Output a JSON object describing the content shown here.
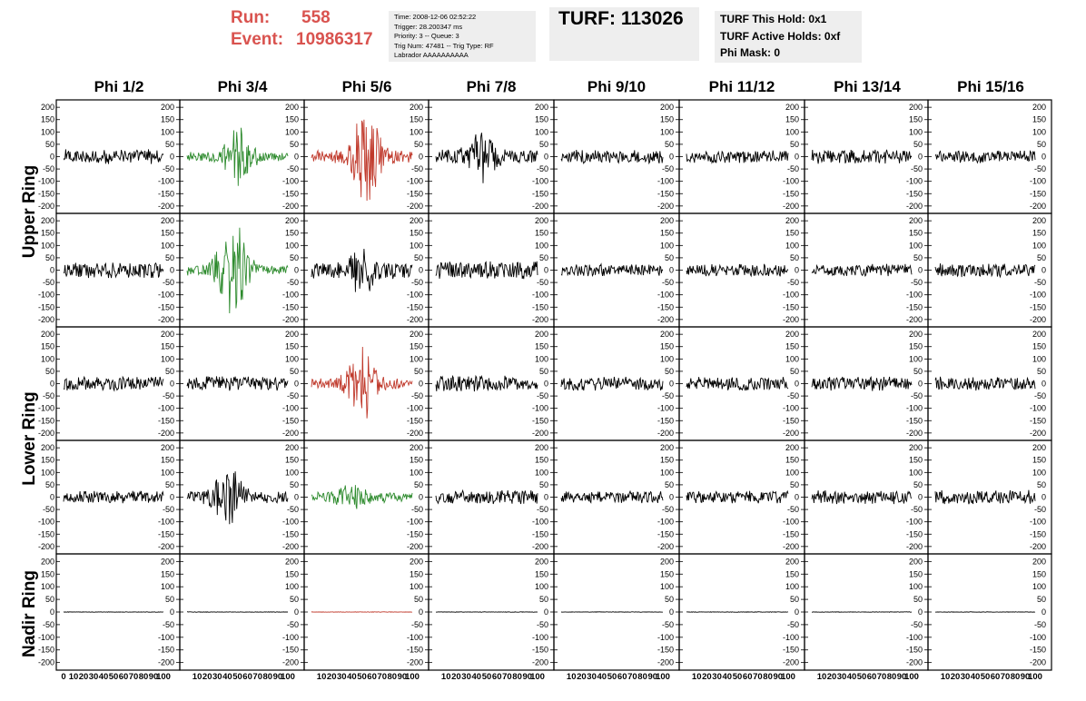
{
  "header": {
    "run_label": "Run:",
    "run_value": "558",
    "event_label": "Event:",
    "event_value": "10986317",
    "info_lines": [
      "Time: 2008-12-06 02:52:22",
      "Trigger: 28.200347 ms",
      "Priority: 3 -- Queue: 3",
      "Trig Num: 47481 -- Trig Type: RF",
      "Labrador AAAAAAAAAA"
    ],
    "turf_title": "TURF: 113026",
    "turf_lines": [
      "TURF This Hold: 0x1",
      "TURF Active Holds: 0xf",
      "Phi Mask: 0"
    ]
  },
  "columns": [
    "Phi 1/2",
    "Phi 3/4",
    "Phi 5/6",
    "Phi 7/8",
    "Phi 9/10",
    "Phi 11/12",
    "Phi 13/14",
    "Phi 15/16"
  ],
  "rings": [
    "Upper Ring",
    "Lower Ring",
    "Nadir Ring"
  ],
  "colors": {
    "triggered_red": "#c0392b",
    "triggered_green": "#2e8b2e",
    "trace": "#000000",
    "header_red": "#d9534f",
    "panel_bg": "#eeeeee"
  },
  "chart_data": {
    "type": "line",
    "description_units": "voltage (mV) vs time (ns)",
    "xlim": [
      0,
      100
    ],
    "ylim": [
      -230,
      230
    ],
    "y_ticks": [
      -200,
      -150,
      -100,
      -50,
      0,
      50,
      100,
      150,
      200
    ],
    "x_tick_labels": [
      "0",
      "10",
      "20",
      "30",
      "40",
      "50",
      "60",
      "70",
      "80",
      "90",
      "100"
    ],
    "rows": [
      {
        "name": "Upper Ring",
        "panels": [
          {
            "color": "black",
            "amplitude": 30,
            "burst_center": null,
            "burst_amplitude": 0
          },
          {
            "color": "green",
            "amplitude": 20,
            "burst_center": 50,
            "burst_amplitude": 110
          },
          {
            "color": "red",
            "amplitude": 25,
            "burst_center": 55,
            "burst_amplitude": 190
          },
          {
            "color": "black",
            "amplitude": 30,
            "burst_center": 45,
            "burst_amplitude": 80
          },
          {
            "color": "black",
            "amplitude": 28,
            "burst_center": null,
            "burst_amplitude": 0
          },
          {
            "color": "black",
            "amplitude": 26,
            "burst_center": null,
            "burst_amplitude": 0
          },
          {
            "color": "black",
            "amplitude": 30,
            "burst_center": null,
            "burst_amplitude": 0
          },
          {
            "color": "black",
            "amplitude": 26,
            "burst_center": null,
            "burst_amplitude": 0
          }
        ]
      },
      {
        "name": "Upper Ring",
        "panels": [
          {
            "color": "black",
            "amplitude": 32,
            "burst_center": null,
            "burst_amplitude": 0
          },
          {
            "color": "green",
            "amplitude": 22,
            "burst_center": 45,
            "burst_amplitude": 200
          },
          {
            "color": "black",
            "amplitude": 35,
            "burst_center": 50,
            "burst_amplitude": 70
          },
          {
            "color": "black",
            "amplitude": 38,
            "burst_center": null,
            "burst_amplitude": 0
          },
          {
            "color": "black",
            "amplitude": 25,
            "burst_center": null,
            "burst_amplitude": 0
          },
          {
            "color": "black",
            "amplitude": 25,
            "burst_center": null,
            "burst_amplitude": 0
          },
          {
            "color": "black",
            "amplitude": 25,
            "burst_center": null,
            "burst_amplitude": 0
          },
          {
            "color": "black",
            "amplitude": 28,
            "burst_center": null,
            "burst_amplitude": 0
          }
        ]
      },
      {
        "name": "Lower Ring",
        "panels": [
          {
            "color": "black",
            "amplitude": 28,
            "burst_center": null,
            "burst_amplitude": 0
          },
          {
            "color": "black",
            "amplitude": 30,
            "burst_center": null,
            "burst_amplitude": 0
          },
          {
            "color": "red",
            "amplitude": 22,
            "burst_center": 50,
            "burst_amplitude": 140
          },
          {
            "color": "black",
            "amplitude": 32,
            "burst_center": null,
            "burst_amplitude": 0
          },
          {
            "color": "black",
            "amplitude": 28,
            "burst_center": null,
            "burst_amplitude": 0
          },
          {
            "color": "black",
            "amplitude": 28,
            "burst_center": null,
            "burst_amplitude": 0
          },
          {
            "color": "black",
            "amplitude": 30,
            "burst_center": null,
            "burst_amplitude": 0
          },
          {
            "color": "black",
            "amplitude": 28,
            "burst_center": null,
            "burst_amplitude": 0
          }
        ]
      },
      {
        "name": "Lower Ring",
        "panels": [
          {
            "color": "black",
            "amplitude": 25,
            "burst_center": null,
            "burst_amplitude": 0
          },
          {
            "color": "black",
            "amplitude": 25,
            "burst_center": 40,
            "burst_amplitude": 110
          },
          {
            "color": "green",
            "amplitude": 22,
            "burst_center": 40,
            "burst_amplitude": 35
          },
          {
            "color": "black",
            "amplitude": 28,
            "burst_center": null,
            "burst_amplitude": 0
          },
          {
            "color": "black",
            "amplitude": 25,
            "burst_center": null,
            "burst_amplitude": 0
          },
          {
            "color": "black",
            "amplitude": 25,
            "burst_center": null,
            "burst_amplitude": 0
          },
          {
            "color": "black",
            "amplitude": 28,
            "burst_center": null,
            "burst_amplitude": 0
          },
          {
            "color": "black",
            "amplitude": 30,
            "burst_center": null,
            "burst_amplitude": 0
          }
        ]
      },
      {
        "name": "Nadir Ring",
        "panels": [
          {
            "color": "black",
            "amplitude": 1,
            "burst_center": null,
            "burst_amplitude": 0
          },
          {
            "color": "black",
            "amplitude": 1,
            "burst_center": null,
            "burst_amplitude": 0
          },
          {
            "color": "red",
            "amplitude": 1,
            "burst_center": null,
            "burst_amplitude": 0
          },
          {
            "color": "black",
            "amplitude": 1,
            "burst_center": null,
            "burst_amplitude": 0
          },
          {
            "color": "black",
            "amplitude": 1,
            "burst_center": null,
            "burst_amplitude": 0
          },
          {
            "color": "black",
            "amplitude": 1,
            "burst_center": null,
            "burst_amplitude": 0
          },
          {
            "color": "black",
            "amplitude": 1,
            "burst_center": null,
            "burst_amplitude": 0
          },
          {
            "color": "black",
            "amplitude": 1,
            "burst_center": null,
            "burst_amplitude": 0
          }
        ]
      }
    ]
  }
}
